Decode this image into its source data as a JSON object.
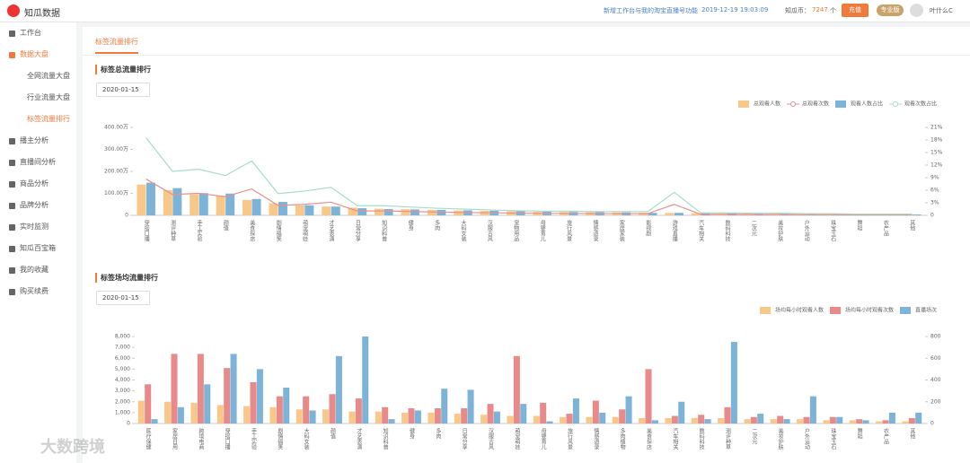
{
  "header": {
    "logo": "知瓜数据",
    "notice": "新增工作台与我的淘宝直播号功能",
    "time": "2019-12-19 19:03:09",
    "coins_label": "知瓜币：",
    "coins": 7247,
    "coins_unit": "个",
    "recharge": "充值",
    "plan": "专业版",
    "user": "叶什么C"
  },
  "sidebar": [
    "工作台",
    "数据大盘",
    "全网流量大盘",
    "行业流量大盘",
    "标签流量排行",
    "播主分析",
    "直播间分析",
    "商品分析",
    "品牌分析",
    "实时监测",
    "知瓜百宝箱",
    "我的收藏",
    "购买续费"
  ],
  "tab": "标签流量排行",
  "filters": [
    "2020-01-15",
    "2020-01-15"
  ],
  "watermark": "大数跨境",
  "chart_data": [
    {
      "type": "combo",
      "title": "标签总流量排行",
      "grid": false,
      "categories": [
        "穿搭口播",
        "测评种草",
        "手工实验",
        "颜值",
        "美食探店",
        "剧情搞笑",
        "萌宠萌娃",
        "才艺表演",
        "日常分享",
        "知识科普",
        "健身",
        "多肉",
        "大码女装",
        "汉服古风",
        "宠物用品",
        "母婴育儿",
        "旅行风景",
        "情感语录",
        "家居家装",
        "影视剧",
        "游戏直播",
        "汽车相关",
        "数码科技",
        "二次元",
        "美妆护肤",
        "户外运动",
        "珠宝玉石",
        "舞蹈",
        "农产品",
        "其他"
      ],
      "ylim": [
        0,
        400
      ],
      "yticks": [
        0,
        {
          "value": 100,
          "label": "100.00万"
        },
        {
          "value": 200,
          "label": "200.00万"
        },
        {
          "value": 300,
          "label": "300.00万"
        },
        {
          "value": 400,
          "label": "400.00万"
        }
      ],
      "y2lim": [
        0,
        21
      ],
      "y2ticks": [
        0,
        {
          "value": 3,
          "label": "3%"
        },
        {
          "value": 6,
          "label": "6%"
        },
        {
          "value": 9,
          "label": "9%"
        },
        {
          "value": 12,
          "label": "12%"
        },
        {
          "value": 15,
          "label": "15%"
        },
        {
          "value": 18,
          "label": "18%"
        },
        {
          "value": 21,
          "label": "21%"
        }
      ],
      "series": [
        {
          "name": "总观看人数",
          "type": "bar",
          "color": "#f8c88a",
          "values": [
            140,
            115,
            95,
            90,
            70,
            55,
            45,
            40,
            35,
            30,
            28,
            25,
            22,
            20,
            18,
            16,
            15,
            14,
            13,
            12,
            11,
            10,
            9,
            8,
            7,
            6,
            5,
            5,
            4,
            3
          ]
        },
        {
          "name": "总观看次数",
          "type": "line",
          "color": "#e8908c",
          "values": [
            165,
            95,
            100,
            85,
            120,
            45,
            50,
            60,
            20,
            20,
            18,
            15,
            13,
            12,
            10,
            9,
            9,
            8,
            8,
            8,
            50,
            5,
            5,
            4,
            4,
            3,
            3,
            2,
            2,
            2
          ]
        },
        {
          "name": "观看人数占比",
          "type": "bar",
          "axis": "y2",
          "color": "#7eb3d8",
          "values": [
            7.8,
            6.5,
            5.3,
            5.2,
            3.9,
            3.2,
            2.4,
            2.1,
            1.7,
            1.5,
            1.4,
            1.3,
            1.2,
            1.1,
            1,
            0.9,
            0.8,
            0.8,
            0.7,
            0.6,
            0.6,
            0.5,
            0.5,
            0.4,
            0.4,
            0.3,
            0.3,
            0.2,
            0.2,
            0.2
          ]
        },
        {
          "name": "观看次数占比",
          "type": "line",
          "axis": "y2",
          "color": "#a8dcc8",
          "values": [
            18.5,
            10.5,
            11,
            9.5,
            13,
            5.2,
            5.8,
            6.7,
            2.3,
            2.3,
            2,
            1.7,
            1.5,
            1.3,
            1.1,
            1,
            1,
            0.9,
            0.9,
            0.9,
            5.5,
            0.6,
            0.6,
            0.5,
            0.5,
            0.4,
            0.4,
            0.3,
            0.3,
            0.3
          ]
        }
      ]
    },
    {
      "type": "combo",
      "title": "标签场均流量排行",
      "grid": false,
      "categories": [
        "医疗保健",
        "家居日用",
        "跨境电商",
        "穿搭口播",
        "手工实验",
        "剧情搞笑",
        "大码女装",
        "颜值",
        "才艺表演",
        "知识科普",
        "健身",
        "多肉",
        "日常分享",
        "汉服古风",
        "萌宠萌娃",
        "母婴育儿",
        "旅行风景",
        "情感语录",
        "多肉植物",
        "美食探店",
        "汽车相关",
        "数码科技",
        "测评种草",
        "二次元",
        "美妆护肤",
        "户外运动",
        "珠宝玉石",
        "舞蹈",
        "农产品",
        "其他"
      ],
      "ylim": [
        0,
        8000
      ],
      "yticks": [
        0,
        {
          "value": 1000,
          "label": "1,000"
        },
        {
          "value": 2000,
          "label": "2,000"
        },
        {
          "value": 3000,
          "label": "3,000"
        },
        {
          "value": 4000,
          "label": "4,000"
        },
        {
          "value": 5000,
          "label": "5,000"
        },
        {
          "value": 6000,
          "label": "6,000"
        },
        {
          "value": 7000,
          "label": "7,000"
        },
        {
          "value": 8000,
          "label": "8,000"
        }
      ],
      "y2lim": [
        0,
        800
      ],
      "y2ticks": [
        0,
        200,
        400,
        600,
        800
      ],
      "series": [
        {
          "name": "场均每小时观看人数",
          "type": "bar",
          "color": "#f8c88a",
          "values": [
            2100,
            2000,
            1900,
            1700,
            1600,
            1500,
            1300,
            1300,
            1100,
            1100,
            1000,
            1000,
            900,
            800,
            700,
            700,
            600,
            600,
            600,
            500,
            500,
            500,
            500,
            400,
            400,
            400,
            300,
            300,
            200,
            200
          ]
        },
        {
          "name": "场均每小时观看次数",
          "type": "bar",
          "color": "#e88a8a",
          "values": [
            3600,
            6400,
            6400,
            5100,
            3800,
            2500,
            2500,
            2700,
            2300,
            1500,
            1400,
            1400,
            1400,
            1800,
            6200,
            1900,
            900,
            2100,
            1300,
            5000,
            700,
            800,
            1500,
            600,
            700,
            600,
            600,
            400,
            300,
            500
          ]
        },
        {
          "name": "直播场次",
          "type": "bar",
          "axis": "y2",
          "color": "#7eb3d8",
          "values": [
            40,
            150,
            360,
            640,
            500,
            330,
            120,
            620,
            800,
            40,
            120,
            320,
            310,
            110,
            180,
            20,
            230,
            100,
            250,
            30,
            200,
            40,
            750,
            90,
            40,
            250,
            60,
            30,
            100,
            100
          ]
        }
      ]
    }
  ]
}
